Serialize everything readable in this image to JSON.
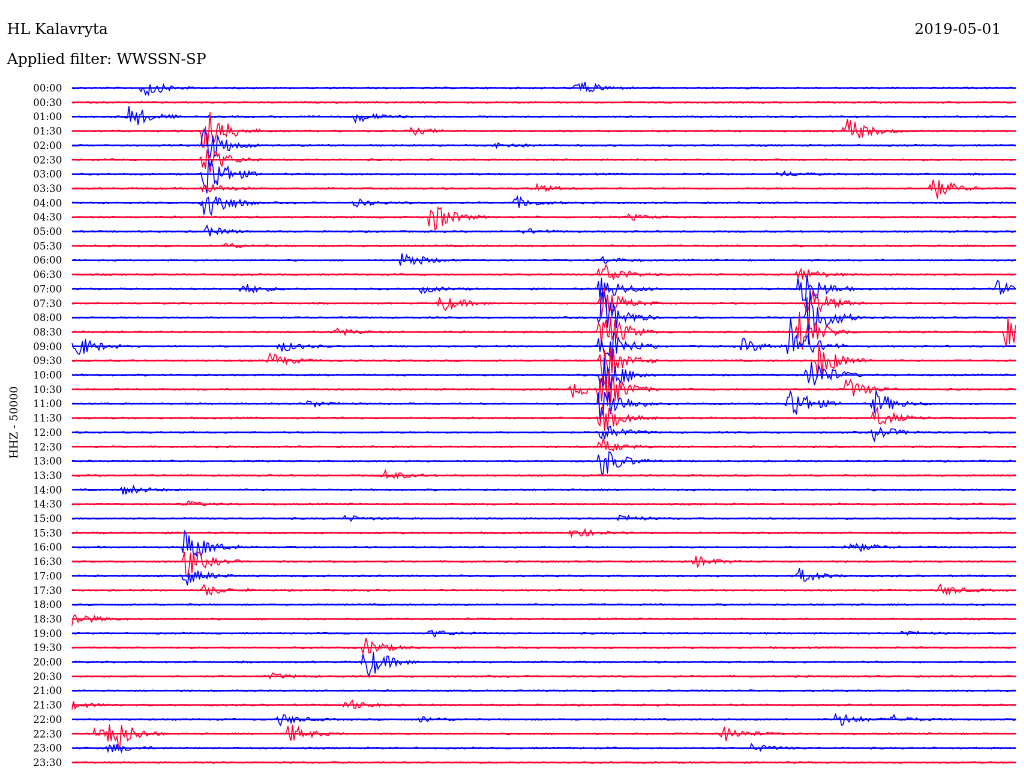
{
  "header": {
    "station": "HL Kalavryta",
    "date": "2019-05-01",
    "filter_label": "Applied filter: WWSSN-SP",
    "channel_label": "HHZ - 50000"
  },
  "colors": {
    "even_row": "#0000ff",
    "odd_row": "#ff0033"
  },
  "rows": [
    {
      "label": "00:00",
      "events": [
        [
          0.075,
          10
        ],
        [
          0.535,
          9
        ]
      ]
    },
    {
      "label": "00:30",
      "events": []
    },
    {
      "label": "01:00",
      "events": [
        [
          0.06,
          14
        ],
        [
          0.3,
          6
        ]
      ]
    },
    {
      "label": "01:30",
      "events": [
        [
          0.14,
          30
        ],
        [
          0.82,
          16
        ],
        [
          0.36,
          4
        ]
      ]
    },
    {
      "label": "02:00",
      "events": [
        [
          0.14,
          22
        ],
        [
          0.45,
          4
        ]
      ]
    },
    {
      "label": "02:30",
      "events": [
        [
          0.14,
          18
        ]
      ]
    },
    {
      "label": "03:00",
      "events": [
        [
          0.14,
          30
        ],
        [
          0.75,
          3
        ]
      ]
    },
    {
      "label": "03:30",
      "events": [
        [
          0.14,
          6
        ],
        [
          0.49,
          4
        ],
        [
          0.91,
          14
        ]
      ]
    },
    {
      "label": "04:00",
      "events": [
        [
          0.14,
          24
        ],
        [
          0.3,
          4
        ],
        [
          0.47,
          6
        ]
      ]
    },
    {
      "label": "04:30",
      "events": [
        [
          0.38,
          18
        ],
        [
          0.59,
          3
        ]
      ]
    },
    {
      "label": "05:00",
      "events": [
        [
          0.14,
          6
        ],
        [
          0.48,
          3
        ]
      ]
    },
    {
      "label": "05:30",
      "events": [
        [
          0.16,
          3
        ]
      ]
    },
    {
      "label": "06:00",
      "events": [
        [
          0.35,
          10
        ],
        [
          0.56,
          4
        ]
      ]
    },
    {
      "label": "06:30",
      "events": [
        [
          0.56,
          14
        ],
        [
          0.77,
          8
        ]
      ]
    },
    {
      "label": "07:00",
      "events": [
        [
          0.18,
          6
        ],
        [
          0.37,
          4
        ],
        [
          0.56,
          16
        ],
        [
          0.77,
          26
        ],
        [
          0.98,
          8
        ]
      ]
    },
    {
      "label": "07:30",
      "events": [
        [
          0.39,
          10
        ],
        [
          0.56,
          18
        ],
        [
          0.78,
          18
        ]
      ]
    },
    {
      "label": "08:00",
      "events": [
        [
          0.56,
          28
        ],
        [
          0.78,
          30
        ]
      ]
    },
    {
      "label": "08:30",
      "events": [
        [
          0.28,
          4
        ],
        [
          0.56,
          28
        ],
        [
          0.77,
          28
        ],
        [
          0.99,
          16
        ]
      ]
    },
    {
      "label": "09:00",
      "events": [
        [
          0.0,
          16
        ],
        [
          0.22,
          6
        ],
        [
          0.56,
          28
        ],
        [
          0.71,
          8
        ],
        [
          0.76,
          30
        ]
      ]
    },
    {
      "label": "09:30",
      "events": [
        [
          0.21,
          8
        ],
        [
          0.56,
          26
        ],
        [
          0.79,
          20
        ]
      ]
    },
    {
      "label": "10:00",
      "events": [
        [
          0.56,
          28
        ],
        [
          0.78,
          22
        ]
      ]
    },
    {
      "label": "10:30",
      "events": [
        [
          0.53,
          8
        ],
        [
          0.56,
          28
        ],
        [
          0.82,
          12
        ]
      ]
    },
    {
      "label": "11:00",
      "events": [
        [
          0.25,
          4
        ],
        [
          0.56,
          26
        ],
        [
          0.76,
          20
        ],
        [
          0.85,
          14
        ]
      ]
    },
    {
      "label": "11:30",
      "events": [
        [
          0.56,
          16
        ],
        [
          0.85,
          12
        ]
      ]
    },
    {
      "label": "12:00",
      "events": [
        [
          0.56,
          10
        ],
        [
          0.85,
          8
        ]
      ]
    },
    {
      "label": "12:30",
      "events": [
        [
          0.56,
          8
        ]
      ]
    },
    {
      "label": "13:00",
      "events": [
        [
          0.56,
          18
        ]
      ]
    },
    {
      "label": "13:30",
      "events": [
        [
          0.33,
          6
        ]
      ]
    },
    {
      "label": "14:00",
      "events": [
        [
          0.055,
          6
        ]
      ]
    },
    {
      "label": "14:30",
      "events": [
        [
          0.12,
          3
        ]
      ]
    },
    {
      "label": "15:00",
      "events": [
        [
          0.29,
          3
        ],
        [
          0.58,
          4
        ]
      ]
    },
    {
      "label": "15:30",
      "events": [
        [
          0.53,
          6
        ]
      ]
    },
    {
      "label": "16:00",
      "events": [
        [
          0.12,
          22
        ],
        [
          0.82,
          8
        ]
      ]
    },
    {
      "label": "16:30",
      "events": [
        [
          0.12,
          18
        ],
        [
          0.66,
          6
        ]
      ]
    },
    {
      "label": "17:00",
      "events": [
        [
          0.12,
          10
        ],
        [
          0.77,
          8
        ]
      ]
    },
    {
      "label": "17:30",
      "events": [
        [
          0.14,
          6
        ],
        [
          0.92,
          6
        ]
      ]
    },
    {
      "label": "18:00",
      "events": []
    },
    {
      "label": "18:30",
      "events": [
        [
          0.0,
          8
        ]
      ]
    },
    {
      "label": "19:00",
      "events": [
        [
          0.38,
          4
        ],
        [
          0.88,
          3
        ]
      ]
    },
    {
      "label": "19:30",
      "events": [
        [
          0.31,
          10
        ]
      ]
    },
    {
      "label": "20:00",
      "events": [
        [
          0.31,
          20
        ]
      ]
    },
    {
      "label": "20:30",
      "events": [
        [
          0.21,
          3
        ]
      ]
    },
    {
      "label": "21:00",
      "events": []
    },
    {
      "label": "21:30",
      "events": [
        [
          0.0,
          4
        ],
        [
          0.29,
          6
        ]
      ]
    },
    {
      "label": "22:00",
      "events": [
        [
          0.22,
          6
        ],
        [
          0.37,
          3
        ],
        [
          0.81,
          8
        ],
        [
          0.87,
          4
        ]
      ]
    },
    {
      "label": "22:30",
      "events": [
        [
          0.025,
          6
        ],
        [
          0.04,
          20
        ],
        [
          0.23,
          10
        ],
        [
          0.69,
          8
        ]
      ]
    },
    {
      "label": "23:00",
      "events": [
        [
          0.04,
          6
        ],
        [
          0.72,
          4
        ]
      ]
    },
    {
      "label": "23:30",
      "events": []
    }
  ]
}
